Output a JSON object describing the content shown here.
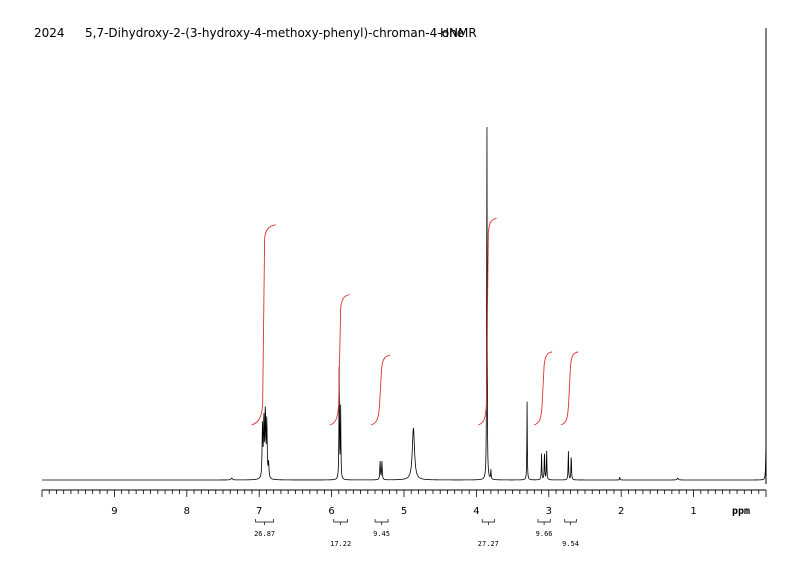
{
  "header": {
    "number": "2024",
    "compound": "5,7-Dihydroxy-2-(3-hydroxy-4-methoxy-phenyl)-chroman-4-one",
    "experiment": "HNMR"
  },
  "chart_data": {
    "type": "line",
    "xlabel": "ppm",
    "xlim": [
      10.0,
      0.0
    ],
    "x_reversed": true,
    "ylim": [
      0,
      100
    ],
    "grid": false,
    "x_ticks": [
      9,
      8,
      7,
      6,
      5,
      4,
      3,
      2,
      1
    ],
    "peaks": [
      {
        "ppm": 7.38,
        "height": 0.5,
        "width": 0.012
      },
      {
        "ppm": 6.955,
        "height": 14,
        "width": 0.006
      },
      {
        "ppm": 6.935,
        "height": 16,
        "width": 0.006
      },
      {
        "ppm": 6.915,
        "height": 18,
        "width": 0.006
      },
      {
        "ppm": 6.895,
        "height": 15,
        "width": 0.006
      },
      {
        "ppm": 6.87,
        "height": 4,
        "width": 0.006
      },
      {
        "ppm": 5.895,
        "height": 31,
        "width": 0.004
      },
      {
        "ppm": 5.875,
        "height": 19,
        "width": 0.004
      },
      {
        "ppm": 5.33,
        "height": 5,
        "width": 0.005
      },
      {
        "ppm": 5.305,
        "height": 5,
        "width": 0.005
      },
      {
        "ppm": 4.87,
        "height": 14,
        "width": 0.018
      },
      {
        "ppm": 3.855,
        "height": 100,
        "width": 0.0035
      },
      {
        "ppm": 3.8,
        "height": 2.5,
        "width": 0.004
      },
      {
        "ppm": 3.3,
        "height": 21,
        "width": 0.0035
      },
      {
        "ppm": 3.1,
        "height": 7,
        "width": 0.004
      },
      {
        "ppm": 3.06,
        "height": 8,
        "width": 0.004
      },
      {
        "ppm": 3.03,
        "height": 8,
        "width": 0.004
      },
      {
        "ppm": 2.73,
        "height": 8,
        "width": 0.004
      },
      {
        "ppm": 2.69,
        "height": 7,
        "width": 0.004
      },
      {
        "ppm": 2.02,
        "height": 0.8,
        "width": 0.004
      },
      {
        "ppm": 1.22,
        "height": 0.5,
        "width": 0.01
      },
      {
        "ppm": 0.0,
        "height": 10,
        "width": 0.005
      }
    ],
    "integrals": [
      {
        "value": "26.87",
        "from": 7.05,
        "to": 6.8,
        "rise": 0.63
      },
      {
        "value": "17.22",
        "from": 5.97,
        "to": 5.78,
        "rise": 0.41
      },
      {
        "value": "9.45",
        "from": 5.4,
        "to": 5.22,
        "rise": 0.22
      },
      {
        "value": "27.27",
        "from": 3.92,
        "to": 3.75,
        "rise": 0.65
      },
      {
        "value": "9.66",
        "from": 3.15,
        "to": 2.98,
        "rise": 0.23
      },
      {
        "value": "9.54",
        "from": 2.78,
        "to": 2.62,
        "rise": 0.23
      }
    ]
  }
}
